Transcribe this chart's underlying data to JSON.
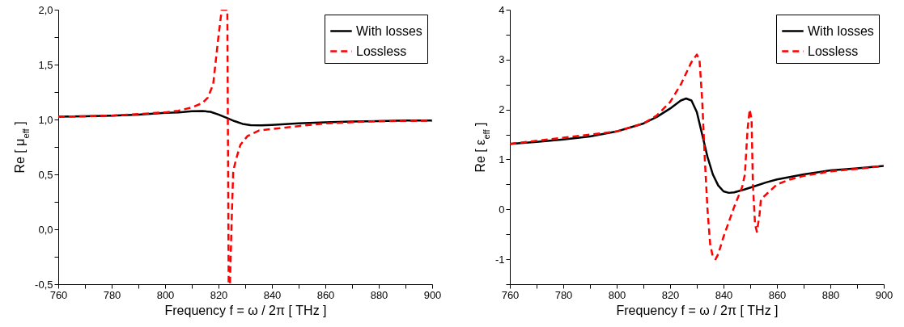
{
  "chart_data": [
    {
      "type": "line",
      "xlabel": "Frequency f = ω / 2π [ THz ]",
      "ylabel": "Re [ μ$_{eff}$ ]",
      "xlim": [
        760,
        900
      ],
      "ylim": [
        -0.5,
        2
      ],
      "xticks": [
        760,
        {
          "value": 770,
          "label": null
        },
        780,
        {
          "value": 790,
          "label": null
        },
        800,
        {
          "value": 810,
          "label": null
        },
        820,
        {
          "value": 830,
          "label": null
        },
        840,
        {
          "value": 850,
          "label": null
        },
        860,
        {
          "value": 870,
          "label": null
        },
        880,
        {
          "value": 890,
          "label": null
        },
        900
      ],
      "yticks": [
        {
          "value": -0.5,
          "label": "-0,5"
        },
        {
          "value": -0.25,
          "label": null
        },
        {
          "value": 0,
          "label": "0,0"
        },
        {
          "value": 0.25,
          "label": null
        },
        {
          "value": 0.5,
          "label": "0,5"
        },
        {
          "value": 0.75,
          "label": null
        },
        {
          "value": 1,
          "label": "1,0"
        },
        {
          "value": 1.25,
          "label": null
        },
        {
          "value": 1.5,
          "label": "1,5"
        },
        {
          "value": 1.75,
          "label": null
        },
        {
          "value": 2,
          "label": "2,0"
        }
      ],
      "legend": "top right",
      "series": [
        {
          "name": "With losses",
          "color": "#000000",
          "line_style": "solid",
          "x": [
            760,
            770,
            780,
            790,
            800,
            805,
            810,
            814,
            817,
            820,
            823,
            826,
            829,
            832,
            836,
            840,
            850,
            860,
            870,
            880,
            890,
            900
          ],
          "values": [
            1.025,
            1.03,
            1.035,
            1.045,
            1.06,
            1.065,
            1.075,
            1.077,
            1.07,
            1.045,
            1.015,
            0.985,
            0.96,
            0.948,
            0.946,
            0.95,
            0.965,
            0.975,
            0.982,
            0.986,
            0.99,
            0.99
          ]
        },
        {
          "name": "Lossless",
          "color": "#ff0000",
          "line_style": "dashed",
          "x": [
            760,
            780,
            800,
            805,
            810,
            814,
            816,
            818,
            820,
            821.2,
            823.3,
            823.8,
            824.3,
            824.9,
            825.5,
            826.6,
            828.2,
            830.9,
            835.2,
            850,
            860,
            880,
            900
          ],
          "values": [
            1.025,
            1.035,
            1.065,
            1.08,
            1.11,
            1.15,
            1.2,
            1.32,
            1.76,
            2.0,
            2.0,
            -0.5,
            -0.5,
            0.06,
            0.53,
            0.64,
            0.77,
            0.85,
            0.9,
            0.94,
            0.965,
            0.985,
            0.99
          ]
        }
      ]
    },
    {
      "type": "line",
      "xlabel": "Frequency f = ω / 2π [ THz ]",
      "ylabel": "Re [ ε$_{eff}$ ]",
      "xlim": [
        760,
        900
      ],
      "ylim": [
        -1.5,
        4
      ],
      "xticks": [
        760,
        {
          "value": 770,
          "label": null
        },
        780,
        {
          "value": 790,
          "label": null
        },
        800,
        {
          "value": 810,
          "label": null
        },
        820,
        {
          "value": 830,
          "label": null
        },
        840,
        {
          "value": 850,
          "label": null
        },
        860,
        {
          "value": 870,
          "label": null
        },
        880,
        {
          "value": 890,
          "label": null
        },
        900
      ],
      "yticks": [
        {
          "value": -1.5,
          "label": null
        },
        -1,
        {
          "value": -0.5,
          "label": null
        },
        0,
        {
          "value": 0.5,
          "label": null
        },
        1,
        {
          "value": 1.5,
          "label": null
        },
        2,
        {
          "value": 2.5,
          "label": null
        },
        3,
        {
          "value": 3.5,
          "label": null
        },
        4
      ],
      "legend": "top right",
      "series": [
        {
          "name": "With losses",
          "color": "#000000",
          "line_style": "solid",
          "x": [
            760,
            770,
            780,
            790,
            800,
            810,
            815,
            820,
            824,
            826,
            828,
            830,
            832,
            834,
            836,
            838,
            840,
            842,
            844,
            848,
            852,
            856,
            860,
            870,
            880,
            890,
            900
          ],
          "values": [
            1.31,
            1.35,
            1.4,
            1.46,
            1.56,
            1.72,
            1.85,
            2.02,
            2.18,
            2.22,
            2.18,
            1.95,
            1.5,
            1.05,
            0.7,
            0.48,
            0.36,
            0.33,
            0.34,
            0.4,
            0.47,
            0.54,
            0.6,
            0.7,
            0.78,
            0.82,
            0.87
          ]
        },
        {
          "name": "Lossless",
          "color": "#ff0000",
          "line_style": "dashed",
          "x": [
            760,
            800,
            810,
            815,
            820,
            824,
            828,
            830,
            831,
            832,
            833,
            834,
            835,
            836,
            837,
            838,
            840,
            842,
            844,
            847,
            848,
            849,
            849.8,
            850.5,
            851,
            851.8,
            852.5,
            853.5,
            854,
            856,
            858,
            860,
            865,
            870,
            880,
            890,
            900
          ],
          "values": [
            1.31,
            1.56,
            1.72,
            1.88,
            2.15,
            2.5,
            2.95,
            3.1,
            3.0,
            2.2,
            1.0,
            0.0,
            -0.7,
            -0.95,
            -1.0,
            -0.9,
            -0.55,
            -0.25,
            0.05,
            0.45,
            0.7,
            1.6,
            2.0,
            1.8,
            0.5,
            -0.3,
            -0.45,
            -0.1,
            0.2,
            0.3,
            0.4,
            0.5,
            0.6,
            0.67,
            0.76,
            0.81,
            0.87
          ]
        }
      ]
    }
  ]
}
